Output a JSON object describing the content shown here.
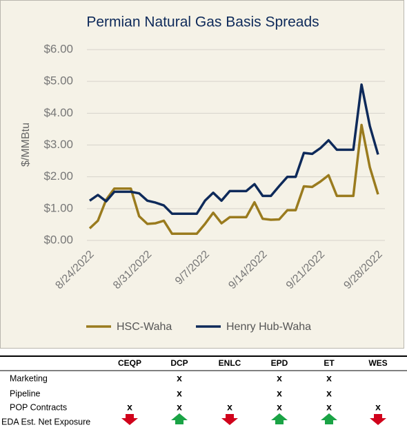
{
  "chart_data": {
    "type": "line",
    "title": "Permian Natural Gas Basis Spreads",
    "y_label": "$/MMBtu",
    "categories": [
      "8/24/2022",
      null,
      null,
      null,
      null,
      null,
      null,
      "8/31/2022",
      null,
      null,
      null,
      null,
      null,
      null,
      "9/7/2022",
      null,
      null,
      null,
      null,
      null,
      null,
      "9/14/2022",
      null,
      null,
      null,
      null,
      null,
      null,
      "9/21/2022",
      null,
      null,
      null,
      null,
      null,
      null,
      "9/28/2022"
    ],
    "series": [
      {
        "name": "HSC-Waha",
        "color": "#9a7b1e",
        "values": [
          0.38,
          0.62,
          1.28,
          1.63,
          1.63,
          1.63,
          0.76,
          0.52,
          0.54,
          0.62,
          0.21,
          0.21,
          0.21,
          0.21,
          0.52,
          0.87,
          0.54,
          0.73,
          0.73,
          0.73,
          1.2,
          0.68,
          0.65,
          0.66,
          0.95,
          0.95,
          1.7,
          1.68,
          1.85,
          2.05,
          1.4,
          1.4,
          1.4,
          3.63,
          2.3,
          1.45
        ]
      },
      {
        "name": "Henry Hub-Waha",
        "color": "#0e2a5a",
        "values": [
          1.25,
          1.43,
          1.23,
          1.53,
          1.53,
          1.53,
          1.48,
          1.25,
          1.19,
          1.1,
          0.84,
          0.84,
          0.84,
          0.84,
          1.25,
          1.5,
          1.25,
          1.55,
          1.55,
          1.55,
          1.77,
          1.4,
          1.4,
          1.71,
          2.0,
          2.0,
          2.75,
          2.72,
          2.9,
          3.15,
          2.85,
          2.85,
          2.85,
          4.9,
          3.6,
          2.7
        ]
      }
    ],
    "ylim": [
      0,
      6.0
    ],
    "yticks": [
      {
        "value": 0,
        "label": "$0.00"
      },
      {
        "value": 1,
        "label": "$1.00"
      },
      {
        "value": 2,
        "label": "$2.00"
      },
      {
        "value": 3,
        "label": "$3.00"
      },
      {
        "value": 4,
        "label": "$4.00"
      },
      {
        "value": 5,
        "label": "$5.00"
      },
      {
        "value": 6,
        "label": "$6.00"
      }
    ],
    "grid": true
  },
  "table": {
    "columns": [
      "CEQP",
      "DCP",
      "ENLC",
      "EPD",
      "ET",
      "WES"
    ],
    "rows": [
      {
        "label": "Marketing",
        "cells": [
          null,
          "x",
          null,
          "x",
          "x",
          null
        ]
      },
      {
        "label": "Pipeline",
        "cells": [
          null,
          "x",
          null,
          "x",
          "x",
          null
        ]
      },
      {
        "label": "POP Contracts",
        "cells": [
          "x",
          "x",
          "x",
          "x",
          "x",
          "x"
        ]
      },
      {
        "label": "EDA Est. Net Exposure",
        "cells": [
          null,
          null,
          null,
          null,
          null,
          null
        ]
      }
    ]
  }
}
